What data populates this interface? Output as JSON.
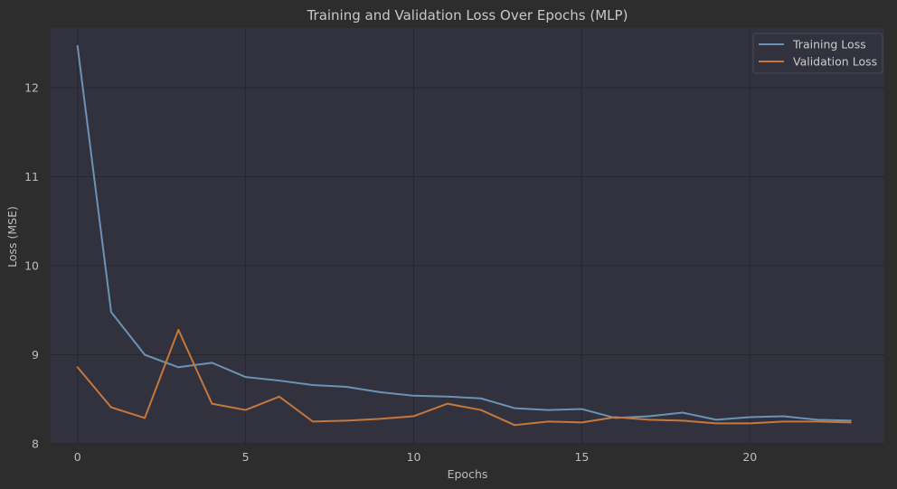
{
  "chart_data": {
    "type": "line",
    "title": "Training and Validation Loss Over Epochs (MLP)",
    "xlabel": "Epochs",
    "ylabel": "Loss (MSE)",
    "xlim": [
      -0.8,
      24.0
    ],
    "ylim": [
      8.0,
      12.67
    ],
    "xticks": [
      0,
      5,
      10,
      15,
      20
    ],
    "yticks": [
      8,
      9,
      10,
      11,
      12
    ],
    "grid": true,
    "legend_position": "top-right",
    "x": [
      0,
      1,
      2,
      3,
      4,
      5,
      6,
      7,
      8,
      9,
      10,
      11,
      12,
      13,
      14,
      15,
      16,
      17,
      18,
      19,
      20,
      21,
      22,
      23
    ],
    "series": [
      {
        "name": "Training Loss",
        "color": "#6a93b5",
        "values": [
          12.47,
          9.48,
          9.0,
          8.86,
          8.91,
          8.75,
          8.71,
          8.66,
          8.64,
          8.58,
          8.54,
          8.53,
          8.51,
          8.4,
          8.38,
          8.39,
          8.29,
          8.31,
          8.35,
          8.27,
          8.3,
          8.31,
          8.27,
          8.26
        ]
      },
      {
        "name": "Validation Loss",
        "color": "#c4783c",
        "values": [
          8.86,
          8.41,
          8.29,
          9.28,
          8.45,
          8.38,
          8.53,
          8.25,
          8.26,
          8.28,
          8.31,
          8.45,
          8.38,
          8.21,
          8.25,
          8.24,
          8.3,
          8.27,
          8.26,
          8.23,
          8.23,
          8.25,
          8.25,
          8.24
        ]
      }
    ]
  },
  "colors": {
    "page_background": "#2d2d2d",
    "plot_background": "#32323f",
    "grid": "#26262c",
    "text": "#bdbdbd"
  }
}
